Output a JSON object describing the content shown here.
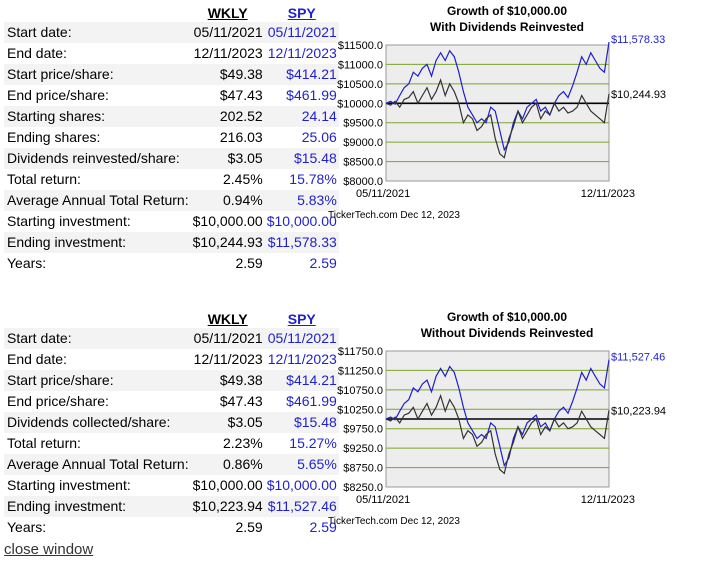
{
  "panels": [
    {
      "headers": {
        "left": "WKLY",
        "right": "SPY"
      },
      "rows": [
        {
          "label": "Start date:",
          "a": "05/11/2021",
          "b": "05/11/2021"
        },
        {
          "label": "End date:",
          "a": "12/11/2023",
          "b": "12/11/2023"
        },
        {
          "label": "Start price/share:",
          "a": "$49.38",
          "b": "$414.21"
        },
        {
          "label": "End price/share:",
          "a": "$47.43",
          "b": "$461.99"
        },
        {
          "label": "Starting shares:",
          "a": "202.52",
          "b": "24.14"
        },
        {
          "label": "Ending shares:",
          "a": "216.03",
          "b": "25.06"
        },
        {
          "label": "Dividends reinvested/share:",
          "a": "$3.05",
          "b": "$15.48"
        },
        {
          "label": "Total return:",
          "a": "2.45%",
          "b": "15.78%"
        },
        {
          "label": "Average Annual Total Return:",
          "a": "0.94%",
          "b": "5.83%"
        },
        {
          "label": "Starting investment:",
          "a": "$10,000.00",
          "b": "$10,000.00"
        },
        {
          "label": "Ending investment:",
          "a": "$10,244.93",
          "b": "$11,578.33"
        },
        {
          "label": "Years:",
          "a": "2.59",
          "b": "2.59"
        }
      ]
    },
    {
      "headers": {
        "left": "WKLY",
        "right": "SPY"
      },
      "rows": [
        {
          "label": "Start date:",
          "a": "05/11/2021",
          "b": "05/11/2021"
        },
        {
          "label": "End date:",
          "a": "12/11/2023",
          "b": "12/11/2023"
        },
        {
          "label": "Start price/share:",
          "a": "$49.38",
          "b": "$414.21"
        },
        {
          "label": "End price/share:",
          "a": "$47.43",
          "b": "$461.99"
        },
        {
          "label": "Dividends collected/share:",
          "a": "$3.05",
          "b": "$15.48"
        },
        {
          "label": "Total return:",
          "a": "2.23%",
          "b": "15.27%"
        },
        {
          "label": "Average Annual Total Return:",
          "a": "0.86%",
          "b": "5.65%"
        },
        {
          "label": "Starting investment:",
          "a": "$10,000.00",
          "b": "$10,000.00"
        },
        {
          "label": "Ending investment:",
          "a": "$10,223.94",
          "b": "$11,527.46"
        },
        {
          "label": "Years:",
          "a": "2.59",
          "b": "2.59"
        }
      ]
    }
  ],
  "close_label": "close window",
  "colors": {
    "spy": "#1f1fd0",
    "wkly": "#333333",
    "grid": "#7ca42e",
    "bg": "#ededed"
  },
  "chart_data": [
    {
      "type": "line",
      "title": "Growth of $10,000.00",
      "subtitle": "With Dividends Reinvested",
      "x_start": "05/11/2021",
      "x_end": "12/11/2023",
      "y_ticks": [
        "$11500.0",
        "$11000.0",
        "$10500.0",
        "$10000.0",
        "$9500.0",
        "$9000.0",
        "$8500.0",
        "$8000.0"
      ],
      "ylim": [
        8000,
        11500
      ],
      "baseline": 10000,
      "footer": "TickerTech.com  Dec 12, 2023",
      "series": [
        {
          "end_label": "$11,578.33",
          "values": [
            10000,
            10050,
            9980,
            10200,
            10400,
            10500,
            10800,
            10700,
            10900,
            11000,
            10700,
            11100,
            11300,
            11100,
            11350,
            11200,
            10800,
            10300,
            9900,
            9700,
            9500,
            9600,
            9500,
            9900,
            9800,
            9300,
            8800,
            9000,
            9500,
            9800,
            9600,
            9900,
            10000,
            10100,
            9800,
            9900,
            9700,
            10000,
            10200,
            10300,
            10150,
            10450,
            10800,
            11200,
            11000,
            11300,
            11100,
            10900,
            10800,
            11578
          ]
        },
        {
          "end_label": "$10,244.93",
          "values": [
            10000,
            9950,
            10050,
            9900,
            10100,
            10150,
            10300,
            10000,
            10200,
            10400,
            10100,
            10300,
            10600,
            10200,
            10500,
            10300,
            10000,
            9500,
            9700,
            9600,
            9300,
            9400,
            9600,
            9700,
            9100,
            8700,
            8600,
            9100,
            9400,
            9800,
            9500,
            9700,
            9900,
            10000,
            9600,
            9800,
            9700,
            10000,
            9800,
            9900,
            9750,
            9800,
            9900,
            10200,
            10000,
            9800,
            9700,
            9600,
            9500,
            10245
          ]
        }
      ]
    },
    {
      "type": "line",
      "title": "Growth of $10,000.00",
      "subtitle": "Without Dividends Reinvested",
      "x_start": "05/11/2021",
      "x_end": "12/11/2023",
      "y_ticks": [
        "$11750.0",
        "$11250.0",
        "$10750.0",
        "$10250.0",
        "$9750.0",
        "$9250.0",
        "$8750.0",
        "$8250.0"
      ],
      "ylim": [
        8250,
        11750
      ],
      "baseline": 10000,
      "footer": "TickerTech.com  Dec 12, 2023",
      "series": [
        {
          "end_label": "$11,527.46",
          "values": [
            10000,
            10050,
            9980,
            10200,
            10400,
            10500,
            10800,
            10700,
            10900,
            11000,
            10700,
            11100,
            11300,
            11100,
            11350,
            11200,
            10800,
            10300,
            9900,
            9700,
            9500,
            9600,
            9500,
            9900,
            9800,
            9300,
            8800,
            9000,
            9500,
            9800,
            9600,
            9900,
            10000,
            10100,
            9800,
            9900,
            9700,
            10000,
            10200,
            10300,
            10150,
            10450,
            10800,
            11200,
            11000,
            11300,
            11100,
            10900,
            10800,
            11527
          ]
        },
        {
          "end_label": "$10,223.94",
          "values": [
            10000,
            9950,
            10050,
            9900,
            10100,
            10150,
            10300,
            10000,
            10200,
            10400,
            10100,
            10300,
            10600,
            10200,
            10500,
            10300,
            10000,
            9500,
            9700,
            9600,
            9300,
            9400,
            9600,
            9700,
            9100,
            8700,
            8600,
            9100,
            9400,
            9800,
            9500,
            9700,
            9900,
            10000,
            9600,
            9800,
            9700,
            10000,
            9800,
            9900,
            9750,
            9800,
            9900,
            10200,
            10000,
            9800,
            9700,
            9600,
            9500,
            10224
          ]
        }
      ]
    }
  ]
}
